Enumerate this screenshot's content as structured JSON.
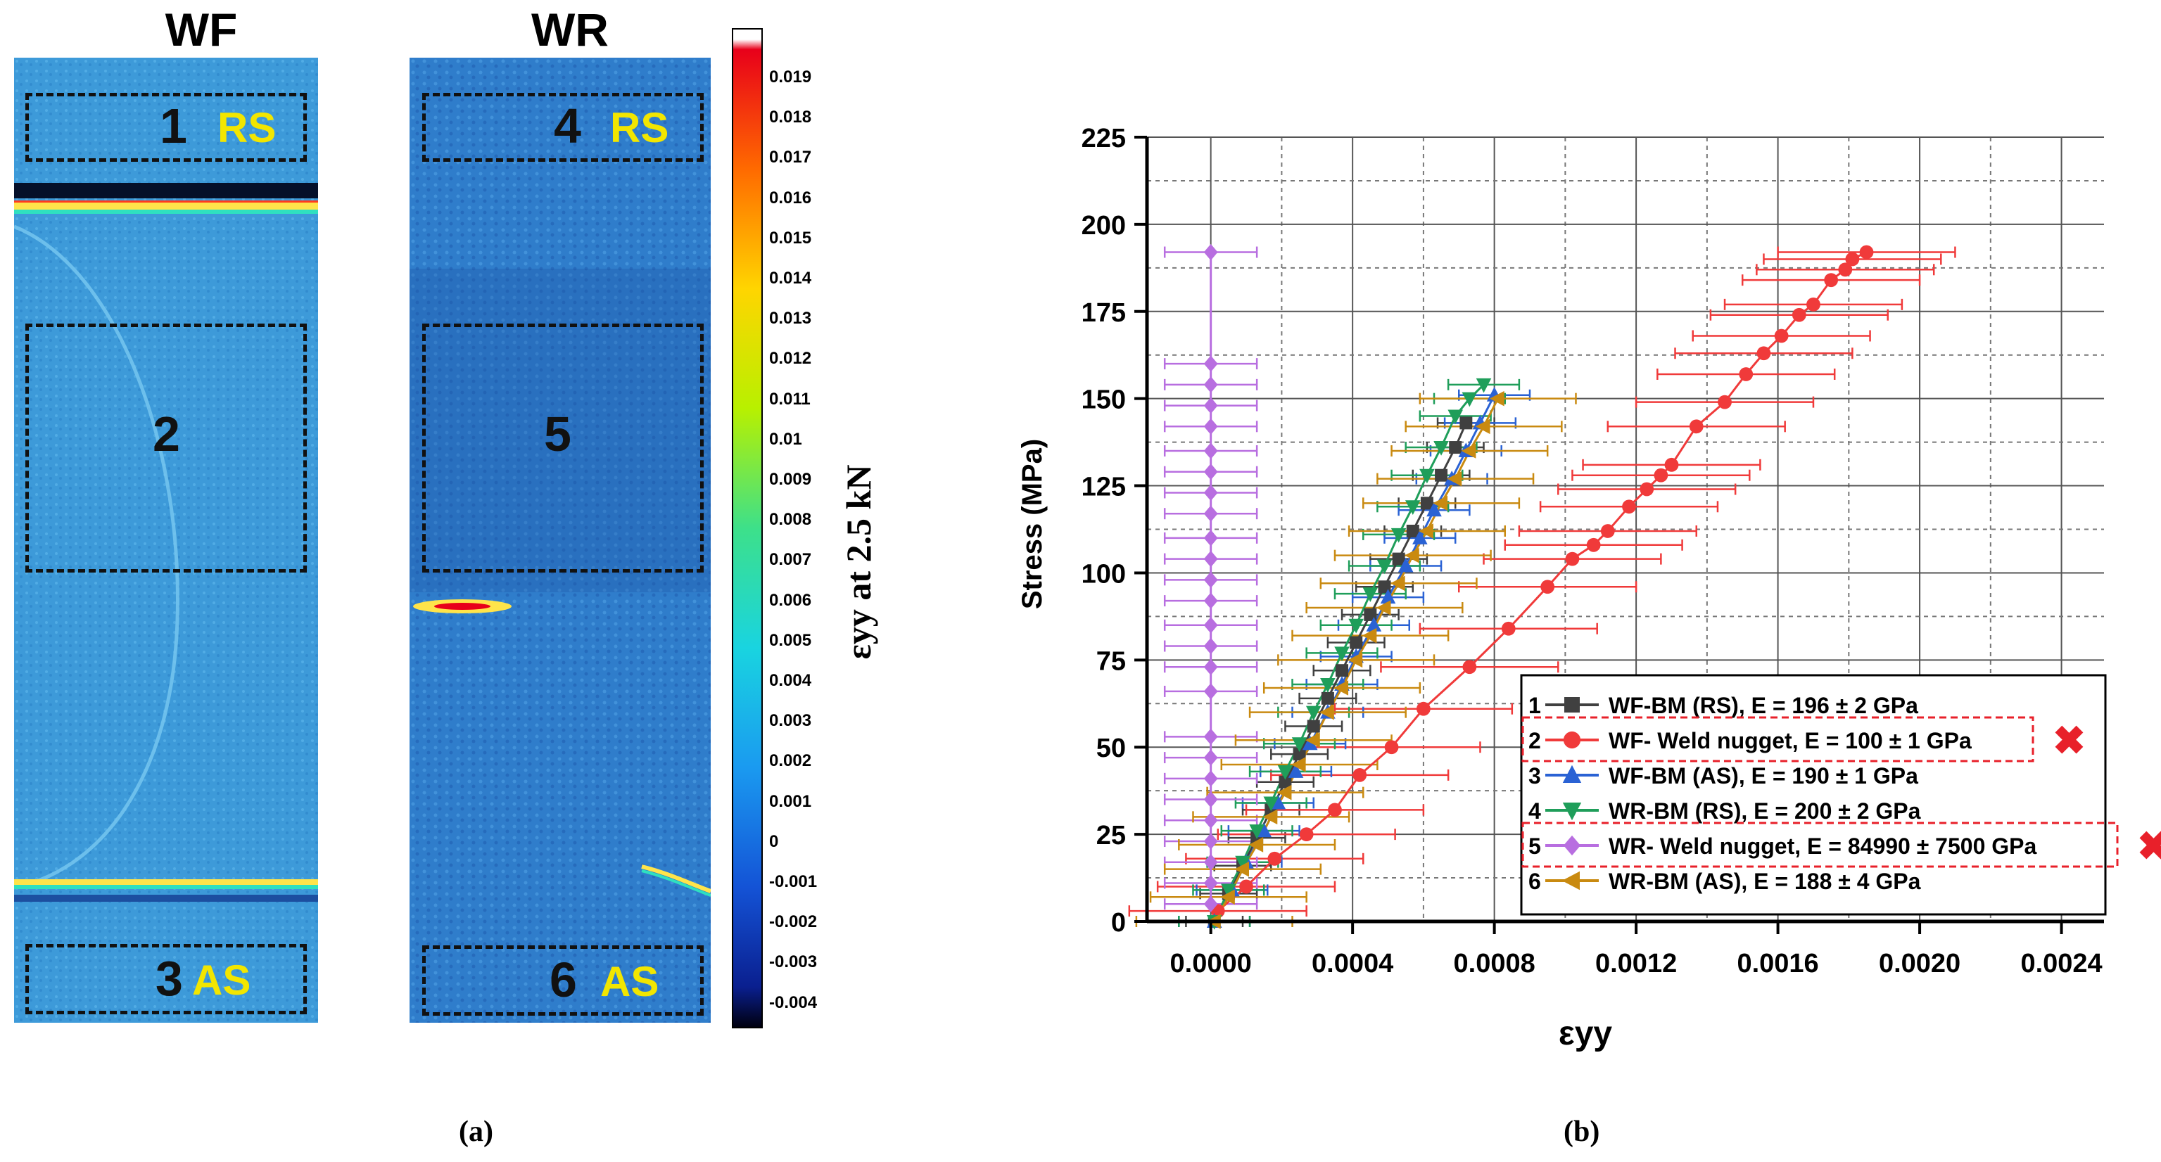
{
  "panel_a": {
    "label": "(a)",
    "maps": [
      {
        "title": "WF",
        "regions": [
          {
            "num": "1",
            "side": "RS"
          },
          {
            "num": "2",
            "side": ""
          },
          {
            "num": "3",
            "side": "AS"
          }
        ]
      },
      {
        "title": "WR",
        "regions": [
          {
            "num": "4",
            "side": "RS"
          },
          {
            "num": "5",
            "side": ""
          },
          {
            "num": "6",
            "side": "AS"
          }
        ]
      }
    ],
    "colorbar": {
      "label": "εyy at 2.5 kN",
      "ticks": [
        "0.019",
        "0.018",
        "0.017",
        "0.016",
        "0.015",
        "0.014",
        "0.013",
        "0.012",
        "0.011",
        "0.01",
        "0.009",
        "0.008",
        "0.007",
        "0.006",
        "0.005",
        "0.004",
        "0.003",
        "0.002",
        "0.001",
        "0",
        "-0.001",
        "-0.002",
        "-0.003",
        "-0.004"
      ],
      "colors": [
        "#ffffff",
        "#e8001a",
        "#ff6a00",
        "#ffd500",
        "#b8f000",
        "#3de08a",
        "#19d4e0",
        "#1a9af0",
        "#1453d6",
        "#0a1f8f",
        "#000010"
      ]
    }
  },
  "panel_b": {
    "label": "(b)",
    "excluded_marker": "✖",
    "marker_color": "#e8202a"
  },
  "chart_data": {
    "type": "scatter",
    "title": "",
    "xlabel": "εyy",
    "ylabel": "Stress (MPa)",
    "xlim": [
      -0.00018,
      0.00252
    ],
    "ylim": [
      0,
      225
    ],
    "xticks": [
      "0.0000",
      "0.0004",
      "0.0008",
      "0.0012",
      "0.0016",
      "0.0020",
      "0.0024"
    ],
    "xtick_values": [
      0,
      0.0004,
      0.0008,
      0.0012,
      0.0016,
      0.002,
      0.0024
    ],
    "yticks": [
      "0",
      "25",
      "50",
      "75",
      "100",
      "125",
      "150",
      "175",
      "200",
      "225"
    ],
    "ytick_values": [
      0,
      25,
      50,
      75,
      100,
      125,
      150,
      175,
      200,
      225
    ],
    "grid": true,
    "legend_position": "bottom-right",
    "series": [
      {
        "name": "WF-BM (RS), E = 196 ± 2 GPa",
        "index": "1",
        "color": "#404040",
        "marker": "square",
        "boxed": false,
        "x": [
          1e-05,
          5e-05,
          9e-05,
          0.00013,
          0.00017,
          0.00021,
          0.00025,
          0.00029,
          0.00033,
          0.00037,
          0.00041,
          0.00045,
          0.00049,
          0.00053,
          0.00057,
          0.00061,
          0.00065,
          0.00069,
          0.00072
        ],
        "y": [
          0,
          8,
          16,
          24,
          32,
          40,
          48,
          56,
          64,
          72,
          80,
          88,
          96,
          104,
          112,
          120,
          128,
          136,
          143
        ],
        "xerr": 8e-05
      },
      {
        "name": "WF- Weld nugget, E = 100 ± 1 GPa",
        "index": "2",
        "color": "#f03a3a",
        "marker": "circle",
        "boxed": true,
        "x": [
          2e-05,
          0.0001,
          0.00018,
          0.00027,
          0.00035,
          0.00042,
          0.00051,
          0.0006,
          0.00073,
          0.00084,
          0.00095,
          0.00102,
          0.00108,
          0.00112,
          0.00118,
          0.00123,
          0.00127,
          0.0013,
          0.00137,
          0.00145,
          0.00151,
          0.00156,
          0.00161,
          0.00166,
          0.0017,
          0.00175,
          0.00179,
          0.00181,
          0.00185
        ],
        "y": [
          3,
          10,
          18,
          25,
          32,
          42,
          50,
          61,
          73,
          84,
          96,
          104,
          108,
          112,
          119,
          124,
          128,
          131,
          142,
          149,
          157,
          163,
          168,
          174,
          177,
          184,
          187,
          190,
          192
        ],
        "xerr": 0.00025
      },
      {
        "name": "WF-BM (AS), E = 190 ± 1 GPa",
        "index": "3",
        "color": "#2a62d4",
        "marker": "triangle-up",
        "boxed": false,
        "x": [
          1e-05,
          6e-05,
          0.0001,
          0.00015,
          0.00019,
          0.00024,
          0.00028,
          0.00033,
          0.00037,
          0.00041,
          0.00046,
          0.0005,
          0.00055,
          0.00059,
          0.00063,
          0.00068,
          0.00072,
          0.00076,
          0.0008
        ],
        "y": [
          0,
          9,
          17,
          26,
          34,
          43,
          51,
          60,
          68,
          76,
          85,
          93,
          102,
          110,
          118,
          127,
          135,
          143,
          151
        ],
        "xerr": 0.0001
      },
      {
        "name": "WR-BM (RS), E = 200 ± 2 GPa",
        "index": "4",
        "color": "#1f9e5a",
        "marker": "triangle-down",
        "boxed": false,
        "x": [
          1e-05,
          5e-05,
          9e-05,
          0.00013,
          0.00017,
          0.00021,
          0.00025,
          0.00029,
          0.00033,
          0.00037,
          0.00041,
          0.00045,
          0.00049,
          0.00053,
          0.00057,
          0.00061,
          0.00065,
          0.00069,
          0.00073,
          0.00077
        ],
        "y": [
          0,
          9,
          17,
          26,
          34,
          43,
          51,
          60,
          68,
          77,
          85,
          94,
          102,
          111,
          119,
          128,
          136,
          145,
          150,
          154
        ],
        "xerr": 0.0001
      },
      {
        "name": "WR- Weld nugget, E = 84990 ± 7500 GPa",
        "index": "5",
        "color": "#b86ee0",
        "marker": "diamond",
        "boxed": true,
        "x": [
          0,
          0,
          0,
          0,
          0,
          0,
          0,
          0,
          0,
          0,
          0,
          0,
          0,
          0,
          0,
          0,
          0,
          0,
          0,
          0,
          0,
          0,
          0,
          0,
          0,
          0
        ],
        "y": [
          5,
          11,
          17,
          23,
          29,
          35,
          41,
          47,
          53,
          66,
          73,
          79,
          85,
          92,
          98,
          104,
          110,
          117,
          123,
          129,
          135,
          142,
          148,
          154,
          160,
          192
        ],
        "xerr": 0.00013
      },
      {
        "name": "WR-BM (AS), E = 188 ± 4 GPa",
        "index": "6",
        "color": "#c98a10",
        "marker": "triangle-left",
        "boxed": false,
        "x": [
          1e-05,
          5e-05,
          9e-05,
          0.00013,
          0.00017,
          0.00021,
          0.00025,
          0.00029,
          0.00033,
          0.00037,
          0.00041,
          0.00045,
          0.00049,
          0.00053,
          0.00057,
          0.00061,
          0.00065,
          0.00069,
          0.00073,
          0.00077,
          0.00081
        ],
        "y": [
          0,
          7,
          15,
          22,
          30,
          37,
          45,
          52,
          60,
          67,
          75,
          82,
          90,
          97,
          105,
          112,
          120,
          127,
          135,
          142,
          150
        ],
        "xerr": 0.00022
      }
    ]
  }
}
